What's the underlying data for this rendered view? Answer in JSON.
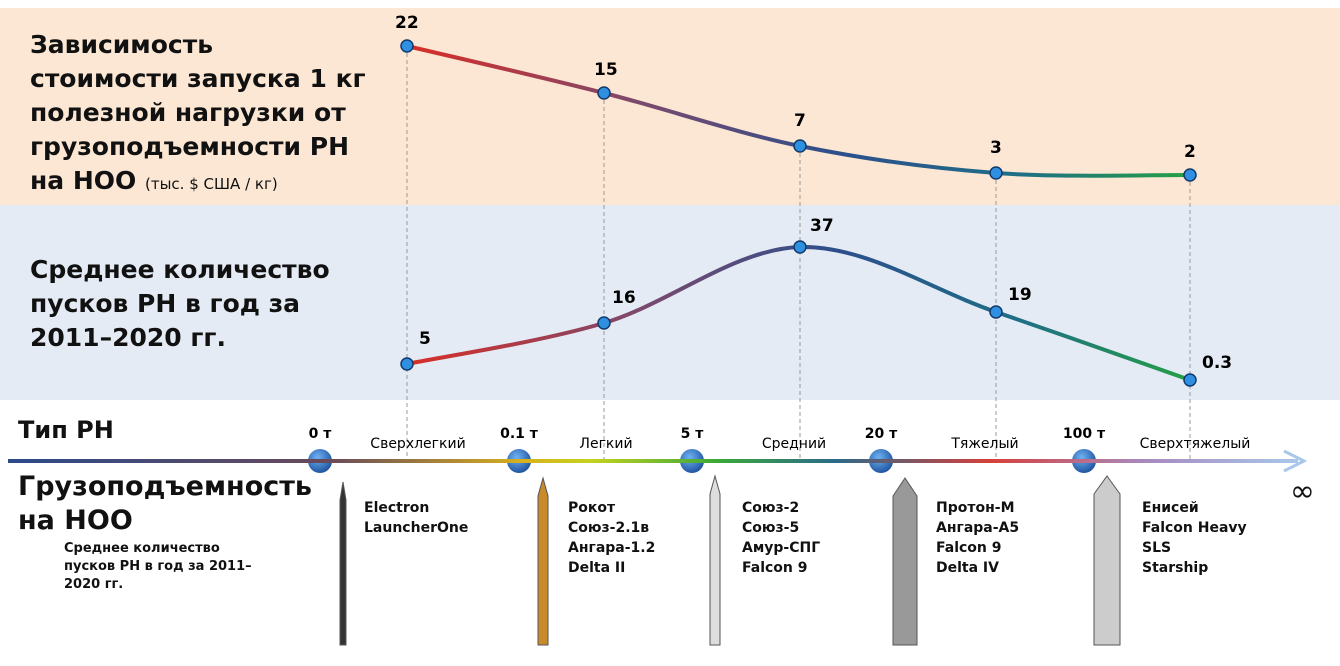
{
  "cost": {
    "title": "Зависимость стоимости запуска 1 кг полезной нагрузки от грузоподъемности РН на НОО",
    "unit": "(тыс. $ США / кг)",
    "values": [
      22,
      15,
      7,
      3,
      2
    ]
  },
  "launches": {
    "title": "Среднее количество пусков РН в год за 2011–2020 гг.",
    "values": [
      5,
      16,
      37,
      19,
      0.3
    ]
  },
  "scale": {
    "type_label": "Тип РН",
    "capacity_label": "Грузоподъемность на НОО",
    "note": "Среднее количество пусков РН в год за 2011–2020 гг.",
    "thresholds": [
      "0 т",
      "0.1 т",
      "5 т",
      "20 т",
      "100 т"
    ],
    "classes": [
      "Сверхлегкий",
      "Легкий",
      "Средний",
      "Тяжелый",
      "Сверхтяжелый"
    ],
    "infinity": "∞"
  },
  "rockets": [
    [
      "Electron",
      "LauncherOne"
    ],
    [
      "Рокот",
      "Союз-2.1в",
      "Ангара-1.2",
      "Delta II"
    ],
    [
      "Союз-2",
      "Союз-5",
      "Амур-СПГ",
      "Falcon 9"
    ],
    [
      "Протон-М",
      "Ангара-А5",
      "Falcon 9",
      "Delta IV"
    ],
    [
      "Енисей",
      "Falcon Heavy",
      "SLS",
      "Starship"
    ]
  ]
}
